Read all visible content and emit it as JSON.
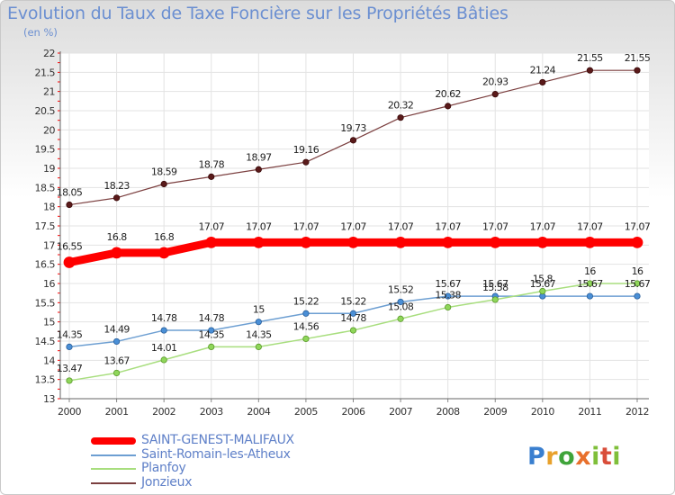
{
  "chart_data": {
    "type": "line",
    "title": "Evolution du Taux de Taxe Foncière sur les Propriétés Bâties",
    "subtitle": "(en %)",
    "xlabel": "",
    "ylabel": "",
    "x": [
      "2000",
      "2001",
      "2002",
      "2003",
      "2004",
      "2005",
      "2006",
      "2007",
      "2008",
      "2009",
      "2010",
      "2011",
      "2012"
    ],
    "ylim": [
      13,
      22
    ],
    "yticks": [
      "13",
      "13.5",
      "14",
      "14.5",
      "15",
      "15.5",
      "16",
      "16.5",
      "17",
      "17.5",
      "18",
      "18.5",
      "19",
      "19.5",
      "20",
      "20.5",
      "21",
      "21.5",
      "22"
    ],
    "grid": true,
    "legend_position": "bottom-left",
    "series": [
      {
        "name": "SAINT-GENEST-MALIFAUX",
        "color": "#ff0000",
        "values": [
          16.55,
          16.8,
          16.8,
          17.07,
          17.07,
          17.07,
          17.07,
          17.07,
          17.07,
          17.07,
          17.07,
          17.07,
          17.07
        ],
        "labels": [
          "16.55",
          "16.8",
          "16.8",
          "17.07",
          "17.07",
          "17.07",
          "17.07",
          "17.07",
          "17.07",
          "17.07",
          "17.07",
          "17.07",
          "17.07"
        ]
      },
      {
        "name": "Saint-Romain-les-Atheux",
        "color": "#6d9fd2",
        "values": [
          14.35,
          14.49,
          14.78,
          14.78,
          15,
          15.22,
          15.22,
          15.52,
          15.67,
          15.67,
          15.67,
          15.67,
          15.67
        ],
        "labels": [
          "14.35",
          "14.49",
          "14.78",
          "14.78",
          "15",
          "15.22",
          "15.22",
          "15.52",
          "15.67",
          "15.67",
          "15.67",
          "15.67",
          "15.67"
        ]
      },
      {
        "name": "Planfoy",
        "color": "#a8de7e",
        "values": [
          13.47,
          13.67,
          14.01,
          14.35,
          14.35,
          14.56,
          14.78,
          15.08,
          15.38,
          15.58,
          15.8,
          16,
          16
        ],
        "labels": [
          "13.47",
          "13.67",
          "14.01",
          "14.35",
          "14.35",
          "14.56",
          "14.78",
          "15.08",
          "15.38",
          "15.58",
          "15.8",
          "16",
          "16"
        ]
      },
      {
        "name": "Jonzieux",
        "color": "#7b3f3f",
        "values": [
          18.05,
          18.23,
          18.59,
          18.78,
          18.97,
          19.16,
          19.73,
          20.32,
          20.62,
          20.93,
          21.24,
          21.55,
          21.55
        ],
        "labels": [
          "18.05",
          "18.23",
          "18.59",
          "18.78",
          "18.97",
          "19.16",
          "19.73",
          "20.32",
          "20.62",
          "20.93",
          "21.24",
          "21.55",
          "21.55"
        ]
      }
    ]
  },
  "brand": {
    "letters": [
      "P",
      "r",
      "o",
      "x",
      "i",
      "t",
      "i"
    ]
  }
}
